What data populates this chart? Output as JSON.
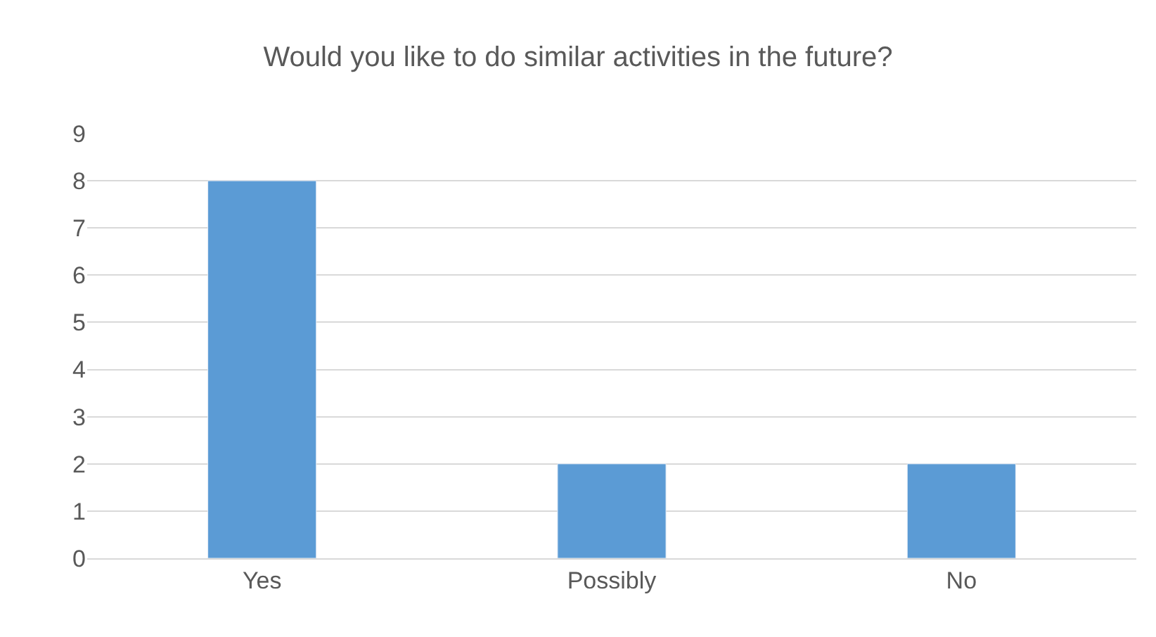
{
  "chart_data": {
    "type": "bar",
    "title": "Would you like to do similar activities in the future?",
    "categories": [
      "Yes",
      "Possibly",
      "No"
    ],
    "values": [
      8,
      2,
      2
    ],
    "color": "#5b9bd5",
    "ylim": [
      0,
      9
    ],
    "yticks": [
      0,
      1,
      2,
      3,
      4,
      5,
      6,
      7,
      8,
      9
    ],
    "grid": "y",
    "legend": false
  }
}
